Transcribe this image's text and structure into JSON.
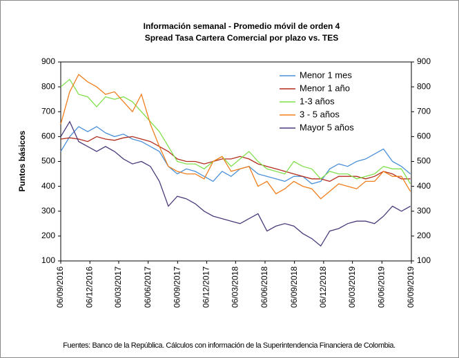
{
  "chart_data": {
    "type": "line",
    "title": "Información semanal - Promedio móvil de orden 4",
    "subtitle": "Spread Tasa Cartera Comercial por plazo vs. TES",
    "y_label": "Puntos básicos",
    "footnote": "Fuentes: Banco de la República. Cálculos con información de la Superintendencia Financiera de Colombia.",
    "x": [
      "2016-09-06",
      "2016-10-04",
      "2016-11-01",
      "2016-11-29",
      "2016-12-27",
      "2017-01-24",
      "2017-02-21",
      "2017-03-21",
      "2017-04-18",
      "2017-05-16",
      "2017-06-13",
      "2017-07-11",
      "2017-08-08",
      "2017-09-05",
      "2017-10-03",
      "2017-10-31",
      "2017-11-28",
      "2017-12-26",
      "2018-01-23",
      "2018-02-20",
      "2018-03-20",
      "2018-04-17",
      "2018-05-15",
      "2018-06-12",
      "2018-07-10",
      "2018-08-07",
      "2018-09-04",
      "2018-10-02",
      "2018-10-30",
      "2018-11-27",
      "2018-12-25",
      "2019-01-22",
      "2019-02-19",
      "2019-03-19",
      "2019-04-16",
      "2019-05-14",
      "2019-06-11",
      "2019-07-09",
      "2019-08-06",
      "2019-09-03"
    ],
    "xlim": [
      "2016-09-06",
      "2019-09-06"
    ],
    "xticks": [
      {
        "value": "2016-09-06",
        "label": "06/09/2016"
      },
      {
        "value": "2016-12-06",
        "label": "06/12/2016"
      },
      {
        "value": "2017-03-06",
        "label": "06/03/2017"
      },
      {
        "value": "2017-06-06",
        "label": "06/06/2017"
      },
      {
        "value": "2017-09-06",
        "label": "06/09/2017"
      },
      {
        "value": "2017-12-06",
        "label": "06/12/2017"
      },
      {
        "value": "2018-03-06",
        "label": "06/03/2018"
      },
      {
        "value": "2018-06-06",
        "label": "06/06/2018"
      },
      {
        "value": "2018-09-06",
        "label": "06/09/2018"
      },
      {
        "value": "2018-12-06",
        "label": "06/12/2018"
      },
      {
        "value": "2019-03-06",
        "label": "06/03/2019"
      },
      {
        "value": "2019-06-06",
        "label": "06/06/2019"
      },
      {
        "value": "2019-09-06",
        "label": "06/09/2019"
      }
    ],
    "ylim": [
      100,
      900
    ],
    "yticks": [
      100,
      200,
      300,
      400,
      500,
      600,
      700,
      800,
      900
    ],
    "y2lim": [
      100,
      900
    ],
    "y2ticks": [
      100,
      200,
      300,
      400,
      500,
      600,
      700,
      800,
      900
    ],
    "legend": "upper right",
    "series": [
      {
        "name": "Menor 1 mes",
        "color": "#4a90d9",
        "values": [
          540,
          600,
          640,
          620,
          640,
          615,
          600,
          610,
          590,
          580,
          560,
          540,
          480,
          450,
          470,
          460,
          440,
          420,
          460,
          440,
          470,
          480,
          450,
          440,
          430,
          420,
          440,
          440,
          410,
          420,
          470,
          490,
          480,
          500,
          510,
          530,
          550,
          500,
          480,
          450
        ]
      },
      {
        "name": "Menor 1 año",
        "color": "#b22a1a",
        "values": [
          590,
          595,
          590,
          580,
          600,
          590,
          585,
          595,
          600,
          590,
          580,
          560,
          540,
          510,
          500,
          500,
          490,
          500,
          510,
          510,
          520,
          510,
          490,
          480,
          470,
          460,
          450,
          440,
          430,
          430,
          420,
          440,
          440,
          440,
          430,
          440,
          460,
          450,
          430,
          430
        ]
      },
      {
        "name": "1-3 años",
        "color": "#7fe04a",
        "values": [
          800,
          830,
          770,
          760,
          720,
          760,
          750,
          760,
          740,
          700,
          660,
          620,
          560,
          500,
          490,
          490,
          470,
          500,
          520,
          480,
          510,
          540,
          500,
          470,
          460,
          450,
          500,
          480,
          470,
          430,
          460,
          450,
          450,
          430,
          440,
          450,
          480,
          470,
          470,
          410
        ]
      },
      {
        "name": "3 - 5 años",
        "color": "#f07d1a",
        "values": [
          650,
          780,
          850,
          820,
          800,
          770,
          780,
          740,
          700,
          770,
          650,
          560,
          480,
          460,
          450,
          450,
          430,
          500,
          520,
          460,
          470,
          480,
          400,
          420,
          370,
          390,
          420,
          400,
          390,
          350,
          380,
          410,
          400,
          390,
          420,
          420,
          460,
          440,
          440,
          380
        ]
      },
      {
        "name": "Mayor 5 años",
        "color": "#4b3a7a",
        "values": [
          600,
          660,
          580,
          560,
          540,
          560,
          540,
          510,
          490,
          500,
          480,
          420,
          320,
          360,
          350,
          330,
          300,
          280,
          270,
          260,
          250,
          270,
          290,
          220,
          240,
          250,
          240,
          210,
          190,
          160,
          220,
          230,
          250,
          260,
          260,
          250,
          280,
          320,
          300,
          320
        ]
      }
    ]
  }
}
